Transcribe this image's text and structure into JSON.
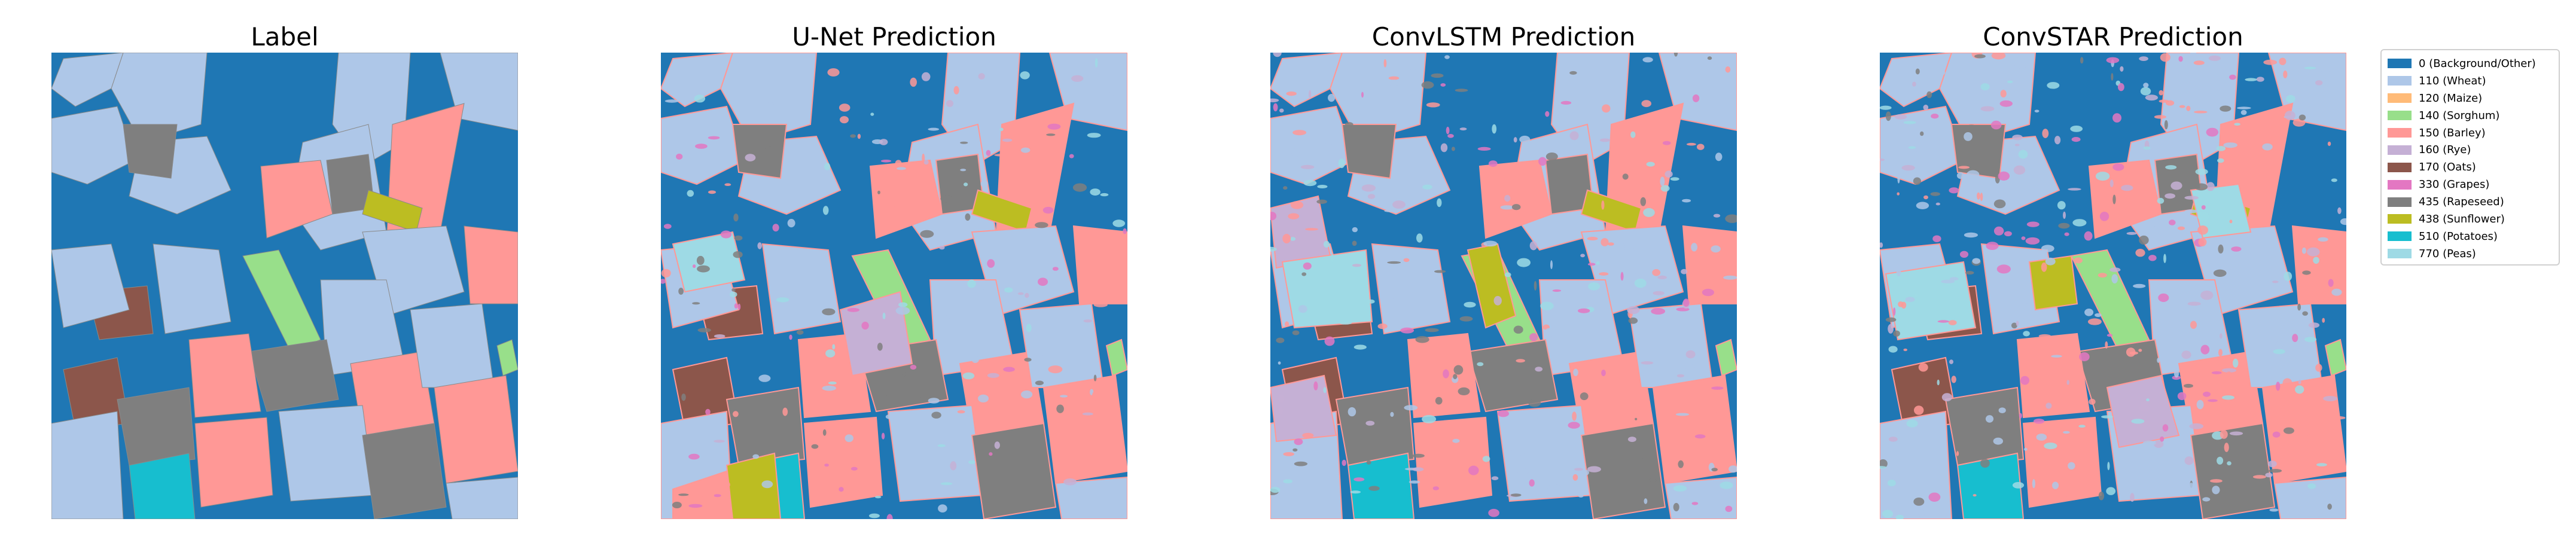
{
  "panels": [
    {
      "title": "Label"
    },
    {
      "title": "U-Net Prediction"
    },
    {
      "title": "ConvLSTM Prediction"
    },
    {
      "title": "ConvSTAR Prediction"
    }
  ],
  "legend": {
    "items": [
      {
        "label": "0 (Background/Other)",
        "color": "#1f77b4"
      },
      {
        "label": "110 (Wheat)",
        "color": "#aec7e8"
      },
      {
        "label": "120 (Maize)",
        "color": "#ffbb78"
      },
      {
        "label": "140 (Sorghum)",
        "color": "#98df8a"
      },
      {
        "label": "150 (Barley)",
        "color": "#ff9896"
      },
      {
        "label": "160 (Rye)",
        "color": "#c5b0d5"
      },
      {
        "label": "170 (Oats)",
        "color": "#8c564b"
      },
      {
        "label": "330 (Grapes)",
        "color": "#e377c2"
      },
      {
        "label": "435 (Rapeseed)",
        "color": "#7f7f7f"
      },
      {
        "label": "438 (Sunflower)",
        "color": "#bcbd22"
      },
      {
        "label": "510 (Potatoes)",
        "color": "#17becf"
      },
      {
        "label": "770 (Peas)",
        "color": "#9edae5"
      }
    ]
  }
}
